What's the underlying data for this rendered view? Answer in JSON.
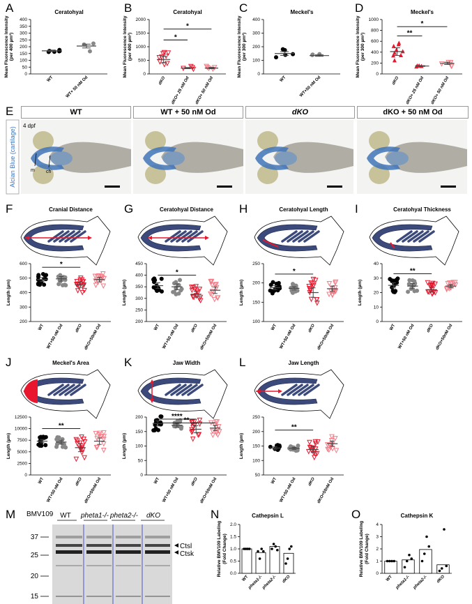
{
  "panelA": {
    "label": "A",
    "title": "Ceratohyal",
    "ylabel": "Mean Fluorescence Intensity",
    "ylabel2": "(per 400 µm²)",
    "yticks": [
      "0",
      "50",
      "100",
      "150",
      "200",
      "250",
      "300",
      "350",
      "400"
    ],
    "groups": [
      "WT",
      "WT+ 50 nM Od"
    ]
  },
  "panelB": {
    "label": "B",
    "title": "Ceratohyal",
    "ylabel": "Mean Fluorescence Intensity",
    "ylabel2": "(per 400 µm²)",
    "yticks": [
      "0",
      "500",
      "1000",
      "1500",
      "2000"
    ],
    "groups": [
      "dKO",
      "dKO+ 25 nM Od",
      "dKO+ 50 nM Od"
    ],
    "sig": [
      "*",
      "*"
    ]
  },
  "panelC": {
    "label": "C",
    "title": "Meckel's",
    "ylabel": "Mean Fluorescence Intensity",
    "ylabel2": "(per 300 µm²)",
    "yticks": [
      "0",
      "100",
      "200",
      "300",
      "400"
    ],
    "groups": [
      "WT",
      "WT+50 nM Od"
    ]
  },
  "panelD": {
    "label": "D",
    "title": "Meckel's",
    "ylabel": "Mean Fluorescence Intensity",
    "ylabel2": "(per 300 µm²)",
    "yticks": [
      "0",
      "200",
      "400",
      "600",
      "800",
      "1000"
    ],
    "groups": [
      "dKO",
      "dKO+ 25 nM Od",
      "dKO+ 50 nM Od"
    ],
    "sig": [
      "**",
      "*"
    ]
  },
  "panelE": {
    "label": "E",
    "headers": [
      "WT",
      "WT + 50 nM Od",
      "dKO",
      "dKO + 50 nM Od"
    ],
    "side": "Alcian Blue (cartilage)",
    "age": "4 dpf",
    "m": "m",
    "ch": "ch"
  },
  "panelF": {
    "label": "F",
    "title": "Cranial Distance",
    "ylabel": "Length (µm)",
    "yticks": [
      "200",
      "300",
      "400",
      "500",
      "600"
    ],
    "sig": [
      "*"
    ]
  },
  "panelG": {
    "label": "G",
    "title": "Ceratohyal Distance",
    "ylabel": "Length (µm)",
    "yticks": [
      "200",
      "250",
      "300",
      "350",
      "400",
      "450"
    ],
    "sig": [
      "*"
    ]
  },
  "panelH": {
    "label": "H",
    "title": "Ceratohyal Length",
    "ylabel": "Length (µm)",
    "yticks": [
      "100",
      "150",
      "200",
      "250"
    ],
    "sig": [
      "*"
    ]
  },
  "panelI": {
    "label": "I",
    "title": "Ceratohyal Thickness",
    "ylabel": "Length (µm)",
    "yticks": [
      "0",
      "10",
      "20",
      "30",
      "40"
    ],
    "sig": [
      "**"
    ]
  },
  "panelJ": {
    "label": "J",
    "title": "Meckel's Area",
    "ylabel": "Length (µm)",
    "yticks": [
      "0",
      "2500",
      "5000",
      "7500",
      "10000",
      "12500"
    ],
    "sig": [
      "**"
    ]
  },
  "panelK": {
    "label": "K",
    "title": "Jaw Width",
    "ylabel": "Length (µm)",
    "yticks": [
      "0",
      "50",
      "100",
      "150",
      "200"
    ],
    "sig": [
      "****",
      "**"
    ]
  },
  "panelL": {
    "label": "L",
    "title": "Jaw Length",
    "ylabel": "Length (µm)",
    "yticks": [
      "50",
      "100",
      "150",
      "200",
      "250"
    ],
    "sig": [
      "**"
    ]
  },
  "groups4": [
    "WT",
    "WT+50 nM Od",
    "dKO",
    "dKO+50nM Od"
  ],
  "panelM": {
    "label": "M",
    "probe": "BMV109",
    "lanes": [
      "WT",
      "pheta1-/-",
      "pheta2-/-",
      "dKO"
    ],
    "mw": [
      "37",
      "25",
      "20",
      "15"
    ],
    "bands": [
      "Ctsl",
      "Ctsk"
    ]
  },
  "panelN": {
    "label": "N",
    "title": "Cathepsin L",
    "ylabel": "Relative BMV109 Labeling",
    "ylabel2": "(Fold Change)",
    "yticks": [
      "0.0",
      "0.5",
      "1.0",
      "1.5",
      "2.0"
    ],
    "groups": [
      "WT",
      "pheta1-/-",
      "pheta2-/-",
      "dKO"
    ],
    "values": [
      1.0,
      0.85,
      1.1,
      0.82
    ]
  },
  "panelO": {
    "label": "O",
    "title": "Cathepsin K",
    "ylabel": "Relative BMV109 Labeling",
    "ylabel2": "(Fold Change)",
    "yticks": [
      "0",
      "1",
      "2",
      "3",
      "4"
    ],
    "groups": [
      "WT",
      "pheta1-/-",
      "pheta2-/-",
      "dKO"
    ],
    "values": [
      1.0,
      1.1,
      1.95,
      0.7
    ]
  },
  "chart_data": [
    {
      "type": "scatter",
      "title": "Ceratohyal",
      "categories": [
        "WT",
        "WT+ 50 nM Od"
      ],
      "means": [
        170,
        205
      ],
      "ylim": [
        0,
        400
      ]
    },
    {
      "type": "scatter",
      "title": "Ceratohyal",
      "categories": [
        "dKO",
        "dKO+ 25 nM Od",
        "dKO+ 50 nM Od"
      ],
      "means": [
        530,
        215,
        215
      ],
      "ylim": [
        0,
        2000
      ]
    },
    {
      "type": "scatter",
      "title": "Meckel's",
      "categories": [
        "WT",
        "WT+50 nM Od"
      ],
      "means": [
        150,
        135
      ],
      "ylim": [
        0,
        400
      ]
    },
    {
      "type": "scatter",
      "title": "Meckel's",
      "categories": [
        "dKO",
        "dKO+ 25 nM Od",
        "dKO+ 50 nM Od"
      ],
      "means": [
        410,
        145,
        195
      ],
      "ylim": [
        0,
        1000
      ]
    },
    {
      "type": "scatter",
      "title": "Cranial Distance",
      "categories": [
        "WT",
        "WT+50 nM Od",
        "dKO",
        "dKO+50nM Od"
      ],
      "means": [
        490,
        495,
        455,
        490
      ],
      "ylim": [
        200,
        600
      ]
    },
    {
      "type": "scatter",
      "title": "Ceratohyal Distance",
      "categories": [
        "WT",
        "WT+50 nM Od",
        "dKO",
        "dKO+50nM Od"
      ],
      "means": [
        355,
        350,
        318,
        335
      ],
      "ylim": [
        200,
        450
      ]
    },
    {
      "type": "scatter",
      "title": "Ceratohyal Length",
      "categories": [
        "WT",
        "WT+50 nM Od",
        "dKO",
        "dKO+50nM Od"
      ],
      "means": [
        188,
        186,
        175,
        185
      ],
      "ylim": [
        100,
        250
      ]
    },
    {
      "type": "scatter",
      "title": "Ceratohyal Thickness",
      "categories": [
        "WT",
        "WT+50 nM Od",
        "dKO",
        "dKO+50nM Od"
      ],
      "means": [
        25,
        24.5,
        22,
        24.5
      ],
      "ylim": [
        0,
        40
      ]
    },
    {
      "type": "scatter",
      "title": "Meckel's Area",
      "categories": [
        "WT",
        "WT+50 nM Od",
        "dKO",
        "dKO+50nM Od"
      ],
      "means": [
        7300,
        7100,
        5900,
        7300
      ],
      "ylim": [
        0,
        12500
      ]
    },
    {
      "type": "scatter",
      "title": "Jaw Width",
      "categories": [
        "WT",
        "WT+50 nM Od",
        "dKO",
        "dKO+50nM Od"
      ],
      "means": [
        178,
        172,
        158,
        162
      ],
      "ylim": [
        0,
        200
      ]
    },
    {
      "type": "scatter",
      "title": "Jaw Length",
      "categories": [
        "WT",
        "WT+50 nM Od",
        "dKO",
        "dKO+50nM Od"
      ],
      "means": [
        143,
        142,
        138,
        158
      ],
      "ylim": [
        50,
        250
      ]
    },
    {
      "type": "bar",
      "title": "Cathepsin L",
      "categories": [
        "WT",
        "pheta1-/-",
        "pheta2-/-",
        "dKO"
      ],
      "values": [
        1.0,
        0.85,
        1.1,
        0.82
      ],
      "ylim": [
        0,
        2
      ]
    },
    {
      "type": "bar",
      "title": "Cathepsin K",
      "categories": [
        "WT",
        "pheta1-/-",
        "pheta2-/-",
        "dKO"
      ],
      "values": [
        1.0,
        1.1,
        1.95,
        0.7
      ],
      "ylim": [
        0,
        4
      ]
    }
  ]
}
